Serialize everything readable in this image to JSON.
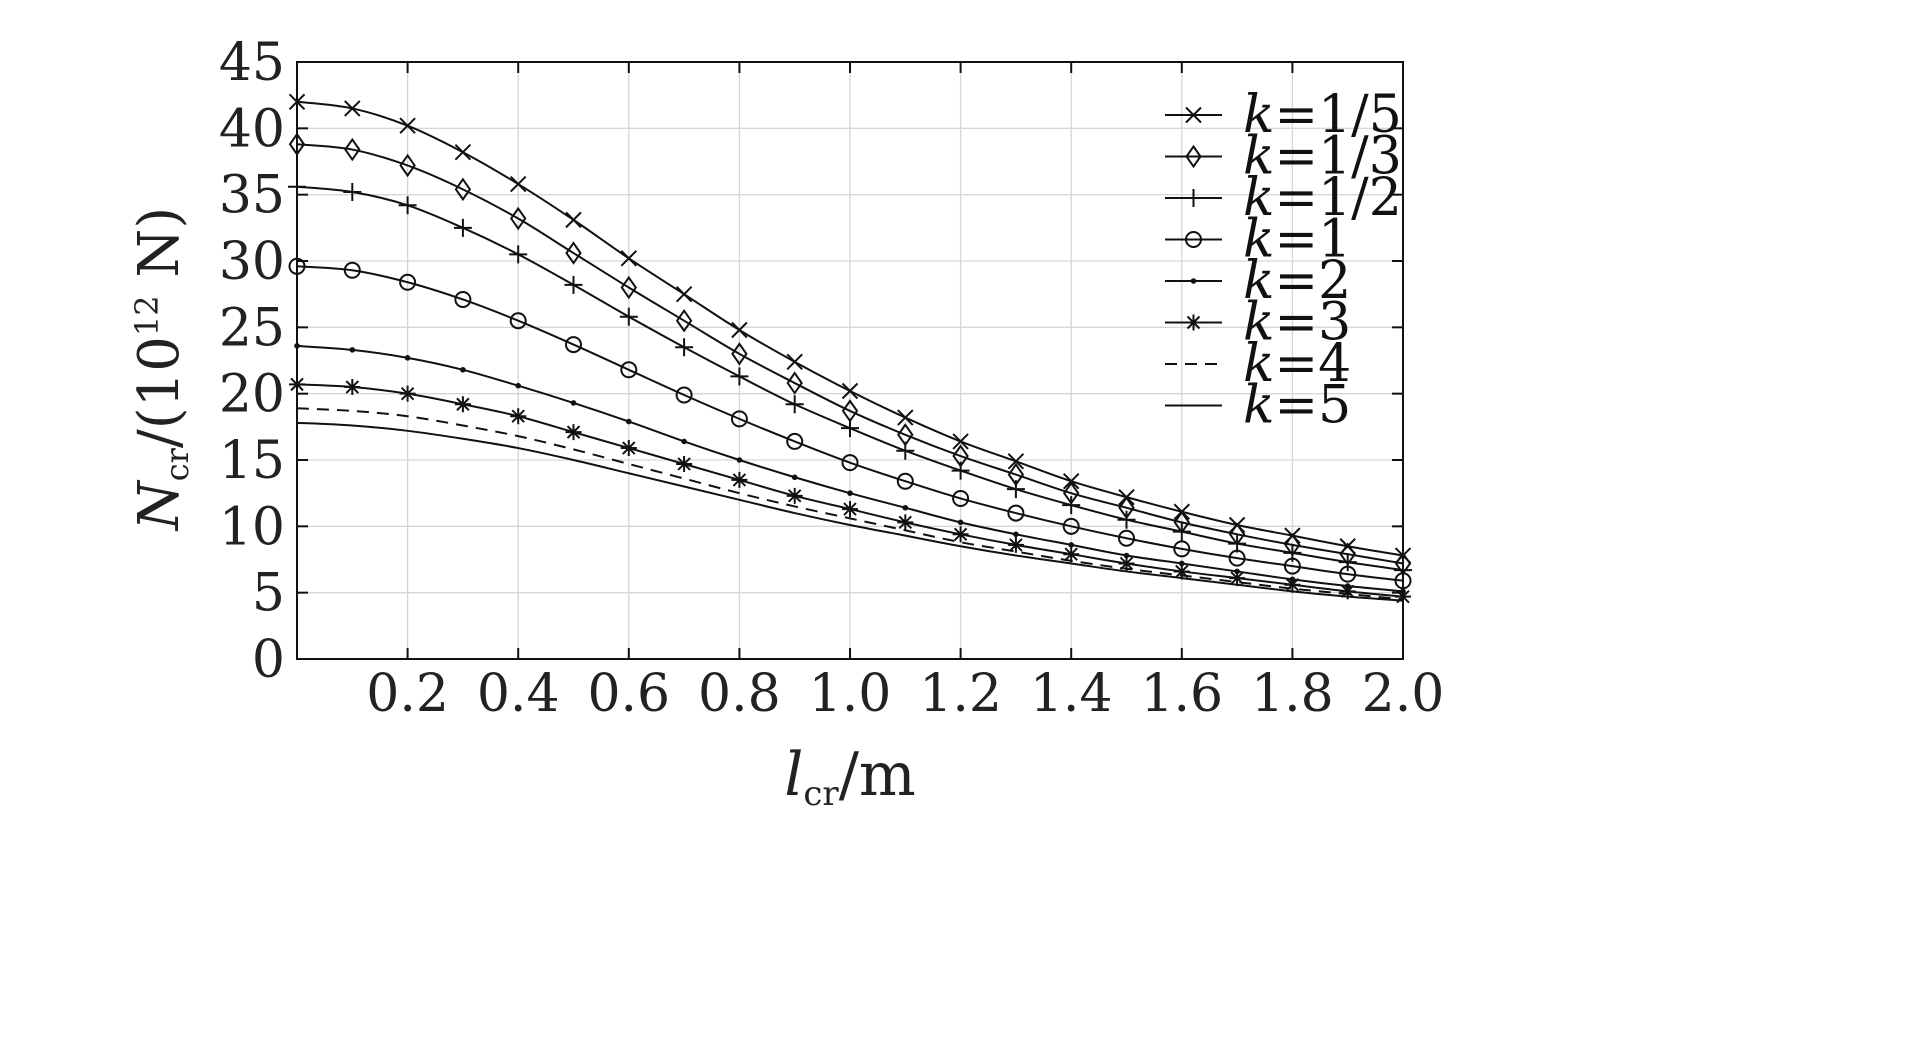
{
  "chart_data": {
    "type": "line",
    "xlabel": {
      "main": "l",
      "sub": "cr",
      "tail": "/m"
    },
    "ylabel": {
      "main": "N",
      "sub": "cr",
      "mid": "/(10",
      "sup": "12",
      "tail": " N)"
    },
    "xlim": [
      0,
      2.0
    ],
    "ylim": [
      0,
      45
    ],
    "x_ticks": [
      0.2,
      0.4,
      0.6,
      0.8,
      1.0,
      1.2,
      1.4,
      1.6,
      1.8,
      2.0
    ],
    "x_tick_labels": [
      "0.2",
      "0.4",
      "0.6",
      "0.8",
      "1.0",
      "1.2",
      "1.4",
      "1.6",
      "1.8",
      "2.0"
    ],
    "y_ticks": [
      0,
      5,
      10,
      15,
      20,
      25,
      30,
      35,
      40,
      45
    ],
    "y_tick_labels": [
      "0",
      "5",
      "10",
      "15",
      "20",
      "25",
      "30",
      "35",
      "40",
      "45"
    ],
    "grid": true,
    "legend_position": "top-right",
    "x": [
      0,
      0.1,
      0.2,
      0.3,
      0.4,
      0.5,
      0.6,
      0.7,
      0.8,
      0.9,
      1.0,
      1.1,
      1.2,
      1.3,
      1.4,
      1.5,
      1.6,
      1.7,
      1.8,
      1.9,
      2.0
    ],
    "series": [
      {
        "name": "k=1/5",
        "k_label": "1/5",
        "marker": "x",
        "line": "solid",
        "values": [
          42.0,
          41.5,
          40.2,
          38.2,
          35.8,
          33.1,
          30.2,
          27.5,
          24.8,
          22.4,
          20.2,
          18.2,
          16.4,
          14.9,
          13.4,
          12.2,
          11.1,
          10.1,
          9.3,
          8.5,
          7.8
        ]
      },
      {
        "name": "k=1/3",
        "k_label": "1/3",
        "marker": "diamond",
        "line": "solid",
        "values": [
          38.8,
          38.4,
          37.2,
          35.4,
          33.2,
          30.6,
          28.0,
          25.5,
          23.0,
          20.8,
          18.7,
          16.9,
          15.3,
          13.9,
          12.5,
          11.4,
          10.3,
          9.4,
          8.6,
          7.9,
          7.2
        ]
      },
      {
        "name": "k=1/2",
        "k_label": "1/2",
        "marker": "plus",
        "line": "solid",
        "values": [
          35.6,
          35.2,
          34.2,
          32.5,
          30.5,
          28.2,
          25.8,
          23.5,
          21.3,
          19.2,
          17.4,
          15.7,
          14.2,
          12.8,
          11.6,
          10.5,
          9.6,
          8.7,
          8.0,
          7.3,
          6.7
        ]
      },
      {
        "name": "k=1",
        "k_label": "1",
        "marker": "circle",
        "line": "solid",
        "values": [
          29.6,
          29.3,
          28.4,
          27.1,
          25.5,
          23.7,
          21.8,
          19.9,
          18.1,
          16.4,
          14.8,
          13.4,
          12.1,
          11.0,
          10.0,
          9.1,
          8.3,
          7.6,
          7.0,
          6.4,
          5.9
        ]
      },
      {
        "name": "k=2",
        "k_label": "2",
        "marker": "dot",
        "line": "solid",
        "values": [
          23.6,
          23.3,
          22.7,
          21.8,
          20.6,
          19.3,
          17.9,
          16.4,
          15.0,
          13.7,
          12.5,
          11.4,
          10.3,
          9.4,
          8.6,
          7.8,
          7.2,
          6.6,
          6.0,
          5.5,
          5.1
        ]
      },
      {
        "name": "k=3",
        "k_label": "3",
        "marker": "star",
        "line": "solid",
        "values": [
          20.7,
          20.5,
          20.0,
          19.2,
          18.3,
          17.1,
          15.9,
          14.7,
          13.5,
          12.3,
          11.3,
          10.3,
          9.4,
          8.6,
          7.9,
          7.2,
          6.6,
          6.1,
          5.6,
          5.1,
          4.7
        ]
      },
      {
        "name": "k=4",
        "k_label": "4",
        "marker": "none",
        "line": "dashed",
        "values": [
          18.9,
          18.7,
          18.3,
          17.6,
          16.8,
          15.8,
          14.7,
          13.6,
          12.5,
          11.5,
          10.6,
          9.7,
          8.8,
          8.1,
          7.4,
          6.8,
          6.3,
          5.8,
          5.3,
          4.9,
          4.5
        ]
      },
      {
        "name": "k=5",
        "k_label": "5",
        "marker": "none",
        "line": "solid",
        "values": [
          17.8,
          17.6,
          17.2,
          16.6,
          15.9,
          15.0,
          14.0,
          13.0,
          12.0,
          11.0,
          10.1,
          9.3,
          8.5,
          7.8,
          7.2,
          6.6,
          6.1,
          5.6,
          5.1,
          4.7,
          4.4
        ]
      }
    ]
  }
}
